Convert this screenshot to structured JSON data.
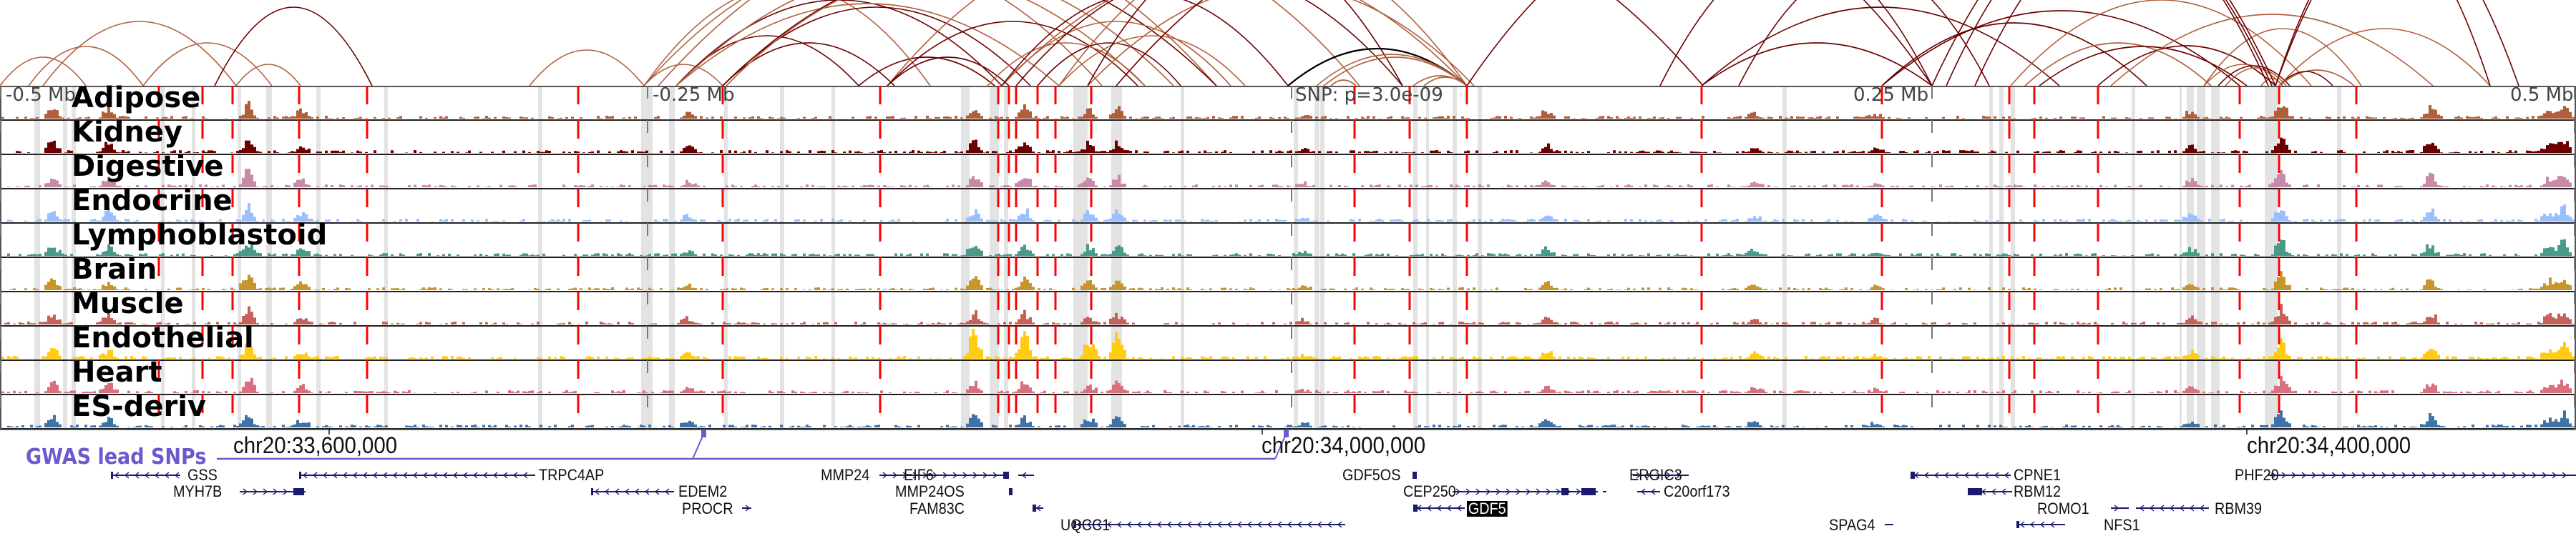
{
  "region": {
    "chromosome": "chr20",
    "scale_labels": [
      "-0.5 Mb",
      "-0.25 Mb",
      "SNP: p=3.0e-09",
      "0.25 Mb",
      "0.5 Mb"
    ],
    "coordinate_labels": [
      "chr20:33,600,000",
      "chr20:34,000,000",
      "chr20:34,400,000"
    ]
  },
  "tracks": [
    {
      "name": "Adipose",
      "color": "#b05f3c"
    },
    {
      "name": "Kidney",
      "color": "#6b0000"
    },
    {
      "name": "Digestive",
      "color": "#c98aa8"
    },
    {
      "name": "Endocrine",
      "color": "#99bfff"
    },
    {
      "name": "Lymphoblastoid",
      "color": "#4a9a8a"
    },
    {
      "name": "Brain",
      "color": "#c8952a"
    },
    {
      "name": "Muscle",
      "color": "#c4625a"
    },
    {
      "name": "Endothelial",
      "color": "#ffcc11"
    },
    {
      "name": "Heart",
      "color": "#d9707f"
    },
    {
      "name": "ES-deriv",
      "color": "#3f73a8"
    }
  ],
  "gwas": {
    "label": "GWAS lead SNPs",
    "color": "#6a5acd"
  },
  "lead_snp": {
    "label": "SNP: p=3.0e-09"
  },
  "genes": [
    {
      "name": "GSS",
      "strand": "-"
    },
    {
      "name": "MYH7B",
      "strand": "+"
    },
    {
      "name": "TRPC4AP",
      "strand": "-"
    },
    {
      "name": "EDEM2",
      "strand": "-"
    },
    {
      "name": "PROCR",
      "strand": "+"
    },
    {
      "name": "MMP24",
      "strand": "+"
    },
    {
      "name": "EIF6",
      "strand": "-"
    },
    {
      "name": "MMP24OS",
      "strand": "-"
    },
    {
      "name": "FAM83C",
      "strand": "-"
    },
    {
      "name": "UQCC1",
      "strand": "-"
    },
    {
      "name": "GDF5OS",
      "strand": "+"
    },
    {
      "name": "CEP250",
      "strand": "+"
    },
    {
      "name": "GDF5",
      "strand": "-",
      "highlighted": true
    },
    {
      "name": "ERGIC3",
      "strand": "+"
    },
    {
      "name": "C20orf173",
      "strand": "-"
    },
    {
      "name": "SPAG4",
      "strand": "+"
    },
    {
      "name": "CPNE1",
      "strand": "-"
    },
    {
      "name": "RBM12",
      "strand": "-"
    },
    {
      "name": "ROMO1",
      "strand": "+"
    },
    {
      "name": "RBM39",
      "strand": "-"
    },
    {
      "name": "NFS1",
      "strand": "-"
    },
    {
      "name": "PHF20",
      "strand": "+"
    }
  ],
  "colors": {
    "highlight_line": "#ff0000",
    "shade_column": "#e3e3e3",
    "gene_model": "#1a1a6e",
    "arc_light": "#b05f3c",
    "arc_dark": "#6b0000",
    "arc_lead": "#000000"
  }
}
